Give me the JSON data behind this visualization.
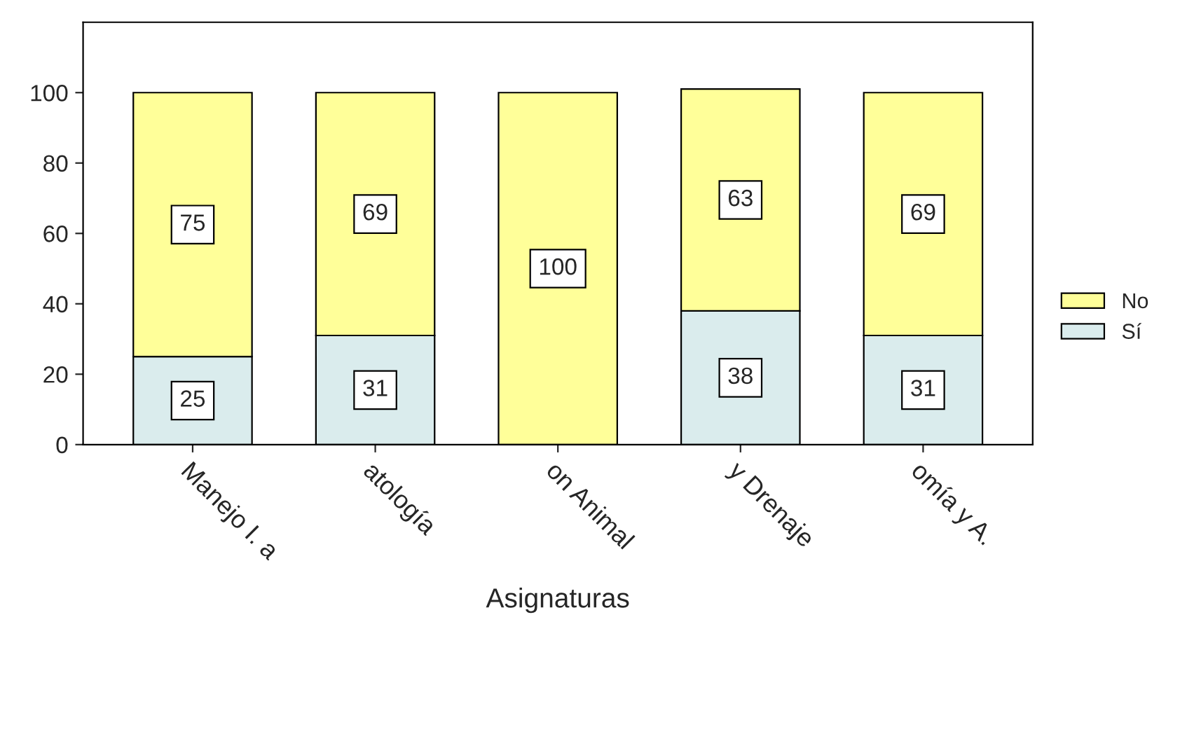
{
  "chart_data": {
    "type": "bar",
    "stacked": true,
    "xlabel": "Asignaturas",
    "categories": [
      "Manejo I. a",
      "atología",
      "on Animal",
      "y Drenaje",
      "omía y A."
    ],
    "series": [
      {
        "name": "Sí",
        "color": "#daeced",
        "values": [
          25,
          31,
          0,
          38,
          31
        ],
        "value_labels": [
          "25",
          "31",
          null,
          "38",
          "31"
        ]
      },
      {
        "name": "No",
        "color": "#ffff99",
        "values": [
          75,
          69,
          100,
          63,
          69
        ],
        "value_labels": [
          "75",
          "69",
          "100",
          "63",
          "69"
        ]
      }
    ],
    "ylim": [
      0,
      120
    ],
    "yticks": [
      0,
      20,
      40,
      60,
      80,
      100
    ],
    "grid": false,
    "legend": "right"
  }
}
